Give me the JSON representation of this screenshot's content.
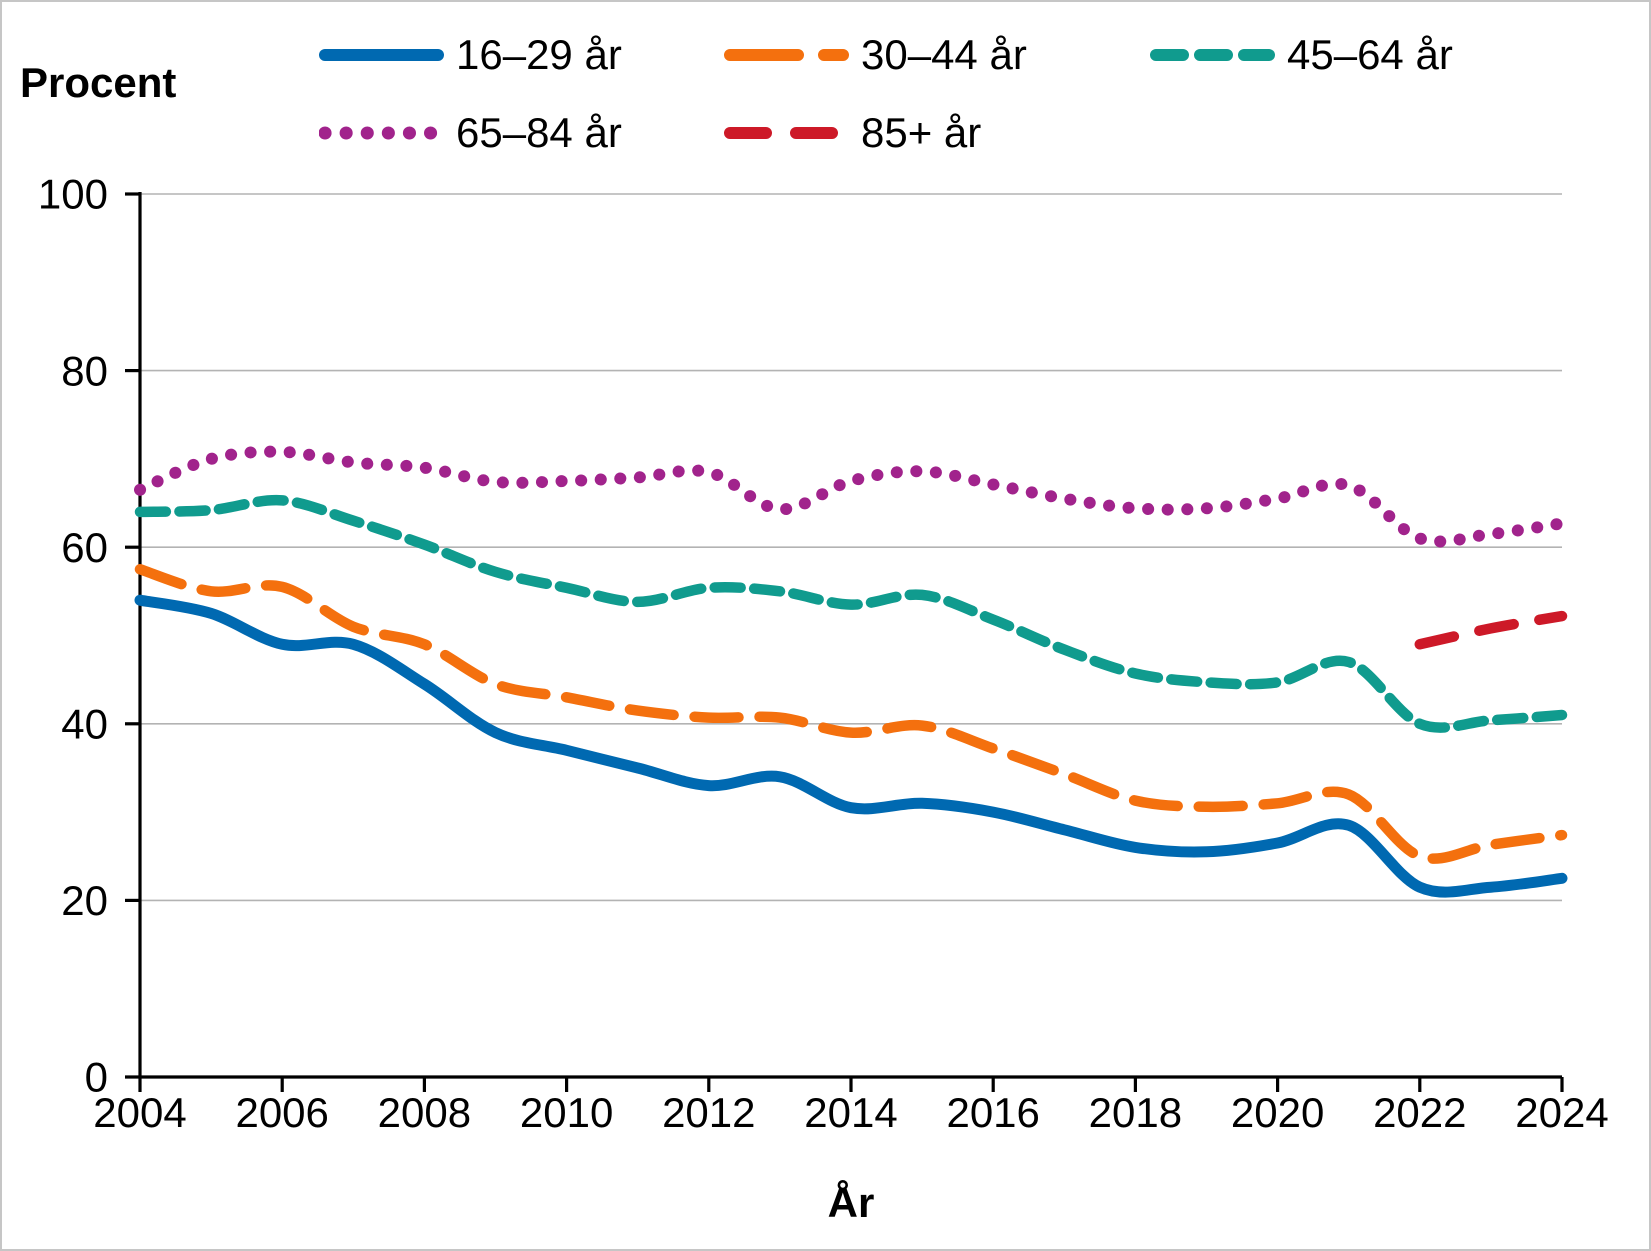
{
  "page": {
    "background": "#ffffff",
    "border_color": "#c6c6c6",
    "gridline_color": "#b3b3b3",
    "axis_color": "#000000",
    "text_color": "#000000"
  },
  "chart_data": {
    "type": "line",
    "title": "",
    "ylabel": "Procent",
    "xlabel": "År",
    "ylim": [
      0,
      100
    ],
    "xlim": [
      2004,
      2024
    ],
    "y_ticks": [
      0,
      20,
      40,
      60,
      80,
      100
    ],
    "x_ticks": [
      2004,
      2006,
      2008,
      2010,
      2012,
      2014,
      2016,
      2018,
      2020,
      2022,
      2024
    ],
    "grid": "horizontal-only",
    "legend_position": "top-two-rows",
    "x": [
      2004,
      2005,
      2006,
      2007,
      2008,
      2009,
      2010,
      2011,
      2012,
      2013,
      2014,
      2015,
      2016,
      2017,
      2018,
      2019,
      2020,
      2021,
      2022,
      2023,
      2024
    ],
    "series": [
      {
        "name": "16–29 år",
        "color": "#0069b1",
        "style": "solid",
        "values": [
          54,
          52.5,
          49,
          49,
          44.5,
          39,
          37,
          35,
          33,
          34,
          30.5,
          31,
          30,
          28,
          26,
          25.5,
          26.5,
          28.5,
          21.5,
          21.5,
          22.5
        ]
      },
      {
        "name": "30–44 år",
        "color": "#f4700e",
        "style": "long-dash",
        "values": [
          57.5,
          55,
          55.5,
          51,
          49,
          44.5,
          43,
          41.5,
          40.7,
          40.7,
          39,
          39.8,
          37.2,
          34.3,
          31.3,
          30.6,
          31,
          32,
          25,
          26.3,
          27.4
        ]
      },
      {
        "name": "45–64 år",
        "color": "#109b8e",
        "style": "dash",
        "values": [
          64,
          64.2,
          65.3,
          63,
          60.3,
          57.2,
          55.4,
          53.8,
          55.4,
          55,
          53.5,
          54.6,
          51.8,
          48.4,
          45.7,
          44.7,
          44.7,
          47,
          40,
          40.4,
          41
        ]
      },
      {
        "name": "65–84 år",
        "color": "#a1238c",
        "style": "dotted",
        "values": [
          66.5,
          70,
          70.8,
          69.6,
          69,
          67.4,
          67.5,
          67.9,
          68.5,
          64.3,
          67.5,
          68.6,
          67.1,
          65.5,
          64.4,
          64.4,
          65.5,
          67,
          61,
          61.5,
          62.7
        ]
      },
      {
        "name": "85+ år",
        "color": "#cd1928",
        "style": "sparse-dash",
        "x": [
          2022,
          2023,
          2024
        ],
        "values": [
          49,
          50.8,
          52.2
        ]
      }
    ]
  }
}
